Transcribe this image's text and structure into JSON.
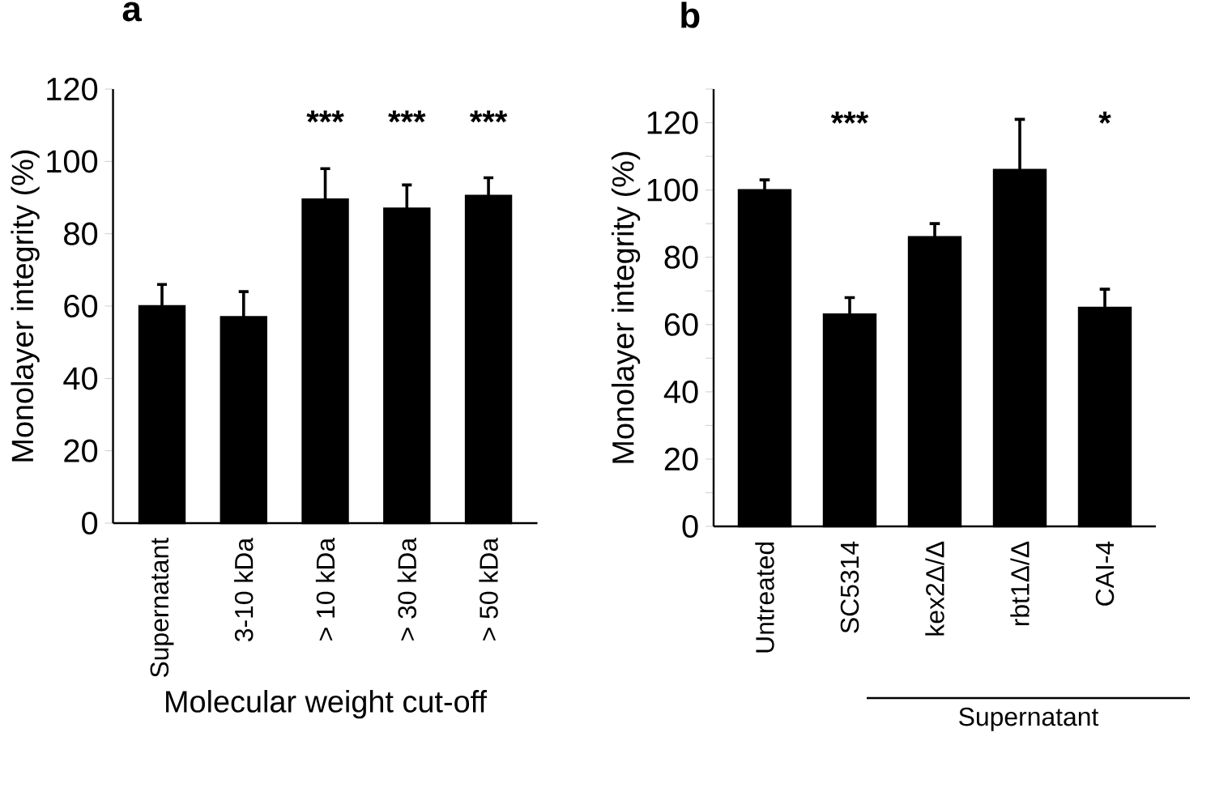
{
  "chart_data": [
    {
      "type": "bar",
      "ylabel": "Monolayer integrity (%)",
      "xlabel": "Molecular weight cut-off",
      "categories": [
        "Supernatant",
        "3-10 kDa",
        "> 10 kDa",
        "> 30 kDa",
        "> 50 kDa"
      ],
      "values": [
        60,
        57,
        89.5,
        87,
        90.5
      ],
      "color": "#000000",
      "errors": [
        [
          60,
          66
        ],
        [
          57,
          64
        ],
        [
          89.5,
          98
        ],
        [
          87,
          93.5
        ],
        [
          90.5,
          95.5
        ]
      ],
      "ylim": [
        0,
        120
      ],
      "yticks": [
        0,
        20,
        40,
        60,
        80,
        100,
        120
      ],
      "annotations": [
        "a",
        "***",
        "***",
        "***"
      ]
    },
    {
      "type": "bar",
      "ylabel": "Monolayer integrity (%)",
      "categories": [
        "Untreated",
        "SC5314",
        "kex2Δ/Δ",
        "rbt1Δ/Δ",
        "CAI-4"
      ],
      "values": [
        100,
        63,
        86,
        106,
        65
      ],
      "color": "#000000",
      "errors": [
        [
          100,
          103
        ],
        [
          63,
          68
        ],
        [
          86,
          90
        ],
        [
          106,
          121
        ],
        [
          65,
          70.5
        ]
      ],
      "ylim": [
        0,
        130
      ],
      "yticks": [
        0,
        {
          "value": 10,
          "label": null
        },
        20,
        {
          "value": 30,
          "label": null
        },
        40,
        {
          "value": 50,
          "label": null
        },
        60,
        {
          "value": 70,
          "label": null
        },
        80,
        {
          "value": 90,
          "label": null
        },
        100,
        {
          "value": 110,
          "label": null
        },
        120,
        {
          "value": 130,
          "label": null
        }
      ],
      "annotations": [
        "b",
        "Supernatant",
        "***",
        "*"
      ]
    }
  ]
}
